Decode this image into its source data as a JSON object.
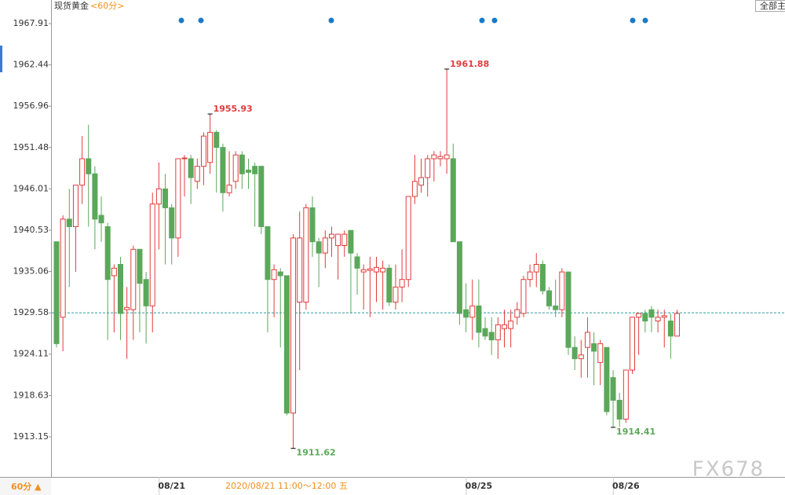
{
  "chart_data": {
    "type": "candlestick",
    "title": "现货黄金",
    "subtitle": "<60分>",
    "button": "全部主",
    "timeframe_button": "60分 ▲",
    "hover_info": "2020/08/21 11:00～12:00 五",
    "watermark": "FX678",
    "categories": [
      null,
      null,
      null,
      null,
      null,
      null,
      null,
      null,
      null,
      null,
      null,
      null,
      null,
      null,
      null,
      null,
      null,
      null,
      "08/21",
      null,
      null,
      null,
      null,
      null,
      null,
      null,
      null,
      null,
      null,
      null,
      null,
      null,
      null,
      null,
      null,
      null,
      null,
      null,
      null,
      null,
      null,
      null,
      null,
      null,
      null,
      null,
      null,
      null,
      null,
      null,
      null,
      null,
      null,
      null,
      null,
      null,
      null,
      null,
      null,
      null,
      null,
      null,
      null,
      null,
      null,
      null,
      "08/25",
      null,
      null,
      null,
      null,
      null,
      null,
      null,
      null,
      null,
      null,
      null,
      null,
      null,
      null,
      null,
      null,
      null,
      null,
      null,
      null,
      null,
      null,
      "08/26",
      null,
      null,
      null,
      null,
      null,
      null,
      null,
      null
    ],
    "series": [
      {
        "up_color": "#e03c3c",
        "down_color": "#5ba85b",
        "open": [
          1939,
          1929,
          1942,
          1941,
          1946.5,
          1950,
          1948,
          1942.5,
          1941,
          1934.5,
          1936,
          1930,
          1930,
          1938,
          1934,
          1930.5,
          1944,
          1946,
          1943.5,
          1939.5,
          1950,
          1950,
          1947,
          1949,
          1949.5,
          1953.5,
          1951.5,
          1945.5,
          1947,
          1950.5,
          1948.5,
          1949,
          1949,
          1941,
          1934,
          1935,
          1934.5,
          1916.3,
          1931,
          1931,
          1943.5,
          1939,
          1937.5,
          1939.5,
          1938.5,
          1938.5,
          1940.5,
          1937,
          1935,
          1935.2,
          1935,
          1935,
          1935.5,
          1931,
          1933,
          1934,
          1945,
          1946.5,
          1947.5,
          1950,
          1950,
          1950,
          1950,
          1939,
          1930,
          1929,
          1930.5,
          1927.5,
          1927,
          1926,
          1927.5,
          1927.5,
          1929,
          1929.5,
          1934,
          1935,
          1936,
          1932.5,
          1930.5,
          1930,
          1935,
          1925,
          1923.5,
          1925,
          1925.5,
          1923,
          1925,
          1921,
          1918,
          1915.5,
          1922,
          1929,
          1929.5,
          1930,
          1928.5,
          1929,
          1928.5,
          1926.5
        ],
        "high": [
          1939,
          1942.5,
          1946,
          1946.5,
          1953,
          1954.5,
          1949,
          1945,
          1941.5,
          1936,
          1937,
          1933,
          1938.5,
          1938,
          1935,
          1945.5,
          1949.5,
          1948,
          1944,
          1950,
          1950.5,
          1950.5,
          1950,
          1953.5,
          1955.93,
          1953.8,
          1952,
          1951,
          1951,
          1951,
          1950,
          1949.5,
          1949,
          1941,
          1936,
          1935.5,
          1934.5,
          1940,
          1943,
          1944,
          1945,
          1939.5,
          1940.5,
          1941,
          1940,
          1940.5,
          1940.5,
          1937.5,
          1936,
          1937,
          1937,
          1936.5,
          1936,
          1936,
          1938,
          1945,
          1950.5,
          1950,
          1950.5,
          1951,
          1951,
          1961.88,
          1952,
          1939,
          1933.5,
          1934,
          1934,
          1929,
          1929,
          1929,
          1930,
          1930,
          1931,
          1934.5,
          1936,
          1937.5,
          1936.5,
          1933,
          1934,
          1935.5,
          1935,
          1926.5,
          1926,
          1929,
          1927,
          1926,
          1925,
          1922,
          1919,
          1922,
          1929,
          1929.5,
          1930,
          1930.5,
          1930,
          1930,
          1929.5,
          1930
        ],
        "low": [
          1925,
          1924.5,
          1933,
          1935,
          1944,
          1941,
          1938,
          1939,
          1926,
          1927,
          1926,
          1923.5,
          1926,
          1927,
          1925.5,
          1927,
          1938,
          1936,
          1936,
          1937,
          1945,
          1944,
          1946,
          1946.5,
          1948,
          1945.5,
          1943,
          1945,
          1946,
          1946,
          1946,
          1941,
          1940,
          1927,
          1929,
          1925,
          1916,
          1911.62,
          1922,
          1930,
          1937,
          1933,
          1935.5,
          1937,
          1934,
          1937,
          1929.5,
          1932,
          1930,
          1929,
          1931,
          1930,
          1930.5,
          1930,
          1931,
          1933,
          1944,
          1945.5,
          1945,
          1947,
          1949,
          1948,
          1939,
          1928,
          1927,
          1926,
          1925,
          1926,
          1924,
          1923.5,
          1925,
          1925,
          1928,
          1929,
          1933,
          1933,
          1932,
          1930,
          1929,
          1929,
          1924,
          1922,
          1921,
          1921,
          1920,
          1920,
          1916,
          1914.41,
          1914.5,
          1915,
          1921.5,
          1924,
          1927,
          1927,
          1927,
          1925,
          1923.5,
          1927
        ],
        "close": [
          1925.5,
          1942,
          1941,
          1946.5,
          1950,
          1948,
          1942,
          1941.5,
          1934,
          1935.5,
          1929.5,
          1930.3,
          1938,
          1933.5,
          1930.5,
          1944,
          1946,
          1943.5,
          1939.5,
          1950,
          1950.1,
          1947.5,
          1949,
          1953,
          1953.5,
          1951.5,
          1945.5,
          1946.5,
          1950.5,
          1948,
          1948.2,
          1948,
          1941,
          1934,
          1935.3,
          1934.5,
          1916.3,
          1939.5,
          1939.5,
          1943.5,
          1939,
          1937.5,
          1939.5,
          1940,
          1940,
          1940,
          1937.5,
          1935.5,
          1935.3,
          1935.4,
          1935.6,
          1935.5,
          1931,
          1933,
          1934,
          1945,
          1947,
          1947.5,
          1950,
          1950.5,
          1950.3,
          1950.5,
          1939,
          1929.5,
          1929,
          1930.5,
          1927,
          1926.5,
          1926,
          1928,
          1928,
          1928.5,
          1930,
          1934,
          1935,
          1936,
          1932.5,
          1930.5,
          1930,
          1935,
          1925,
          1923.5,
          1924,
          1927,
          1924.5,
          1925.5,
          1916.5,
          1918,
          1915.5,
          1922,
          1929,
          1929.5,
          1928.5,
          1929,
          1929,
          1929.2,
          1926.5,
          1929.5
        ]
      }
    ],
    "last_price": 1929.58,
    "ylim": [
      1908.05,
      1971.03
    ],
    "yticks": [
      1967.91,
      1962.44,
      1956.96,
      1951.48,
      1946.01,
      1940.53,
      1935.06,
      1929.58,
      1924.11,
      1918.63,
      1913.15
    ],
    "grid": false
  }
}
